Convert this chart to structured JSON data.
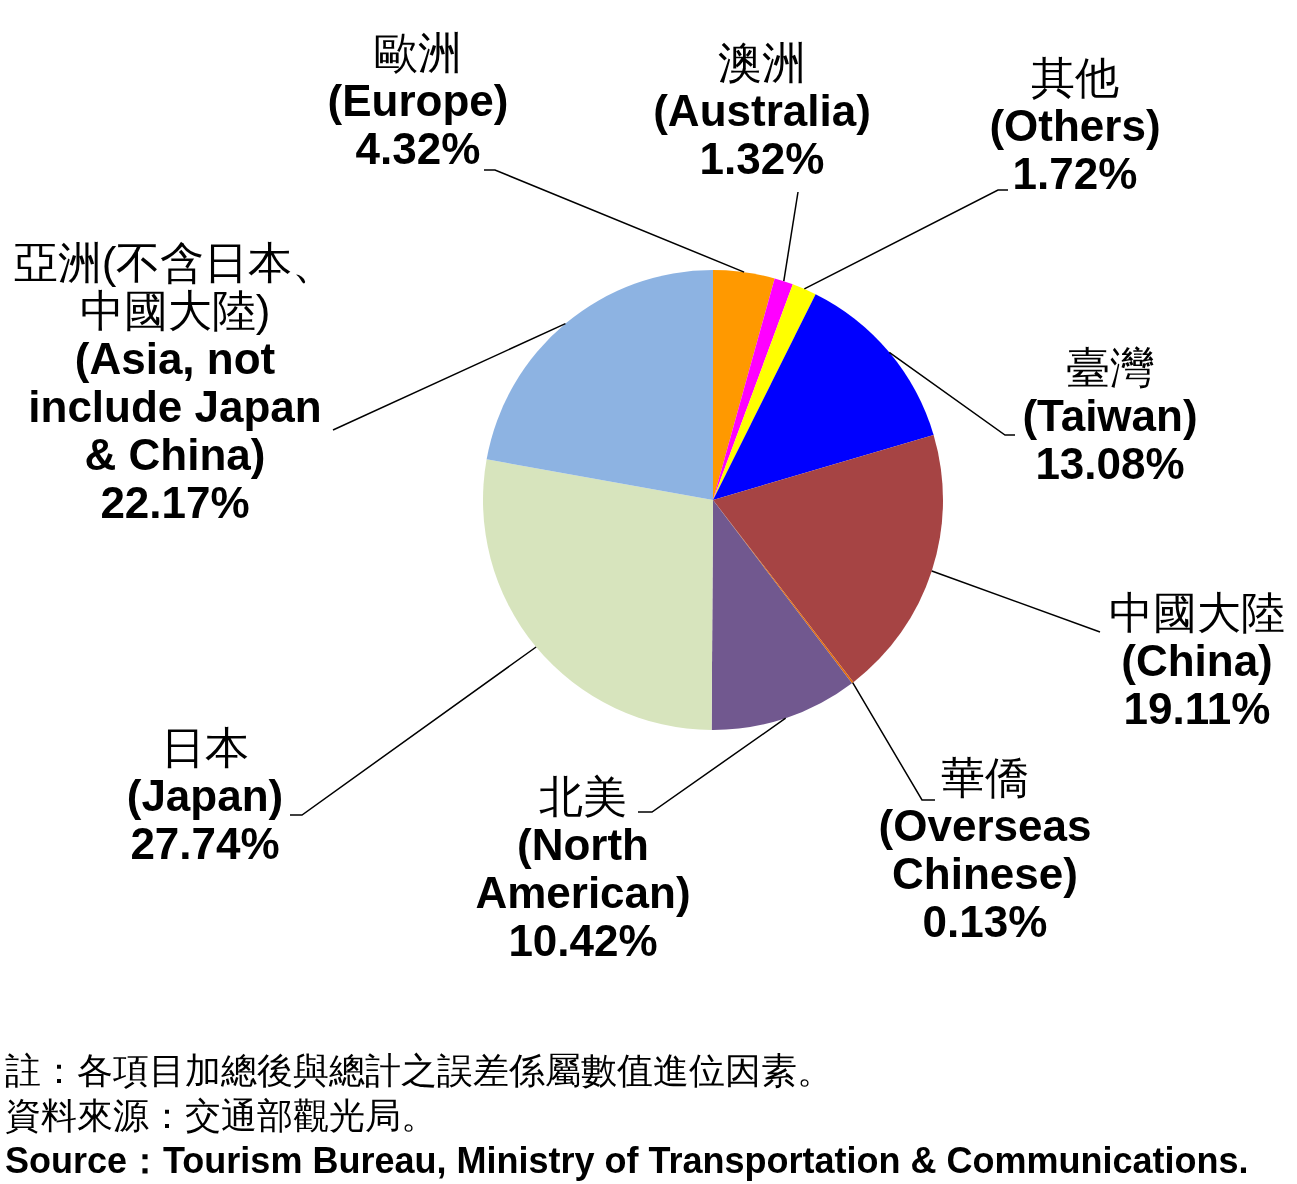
{
  "chart_data": {
    "type": "pie",
    "categories": [
      "歐洲\n(Europe)",
      "澳洲\n(Australia)",
      "其他\n(Others)",
      "臺灣\n(Taiwan)",
      "中國大陸\n(China)",
      "華僑\n(Overseas\nChinese)",
      "北美\n(North\nAmerican)",
      "日本\n(Japan)",
      "亞洲(不含日本、中國大陸)\n(Asia, not\ninclude Japan\n& China)"
    ],
    "values": [
      4.32,
      1.32,
      1.72,
      13.08,
      19.11,
      0.13,
      10.42,
      27.74,
      22.17
    ],
    "colors": [
      "#ff9900",
      "#ff00ff",
      "#ffff00",
      "#0000ff",
      "#a64444",
      "#e46c0a",
      "#71588f",
      "#d7e4bd",
      "#8db3e2"
    ],
    "value_labels": [
      "4.32%",
      "1.32%",
      "1.72%",
      "13.08%",
      "19.11%",
      "0.13%",
      "10.42%",
      "27.74%",
      "22.17%"
    ],
    "annotations": [
      "註：各項目加總後與總計之誤差係屬數值進位因素。",
      "資料來源：交通部觀光局。",
      "Source：Tourism Bureau, Ministry of Transportation & Communications."
    ]
  }
}
